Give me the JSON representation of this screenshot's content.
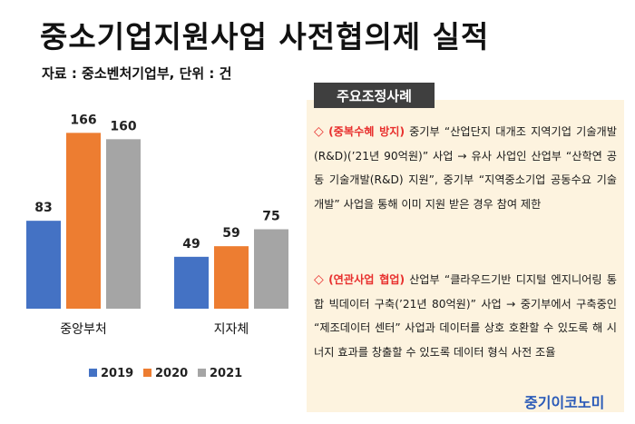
{
  "title": "중소기업지원사업  사전협의제  실적",
  "source_line": "자료 : 중소벤처기업부, 단위 : 건",
  "chart_data": {
    "type": "bar",
    "categories": [
      "중앙부처",
      "지자체"
    ],
    "series": [
      {
        "name": "2019",
        "values": [
          83,
          49
        ],
        "color": "#4472c4"
      },
      {
        "name": "2020",
        "values": [
          166,
          59
        ],
        "color": "#ed7d31"
      },
      {
        "name": "2021",
        "values": [
          160,
          75
        ],
        "color": "#a5a5a5"
      }
    ],
    "ylim": [
      0,
      180
    ],
    "grid": false,
    "legend_position": "bottom",
    "title": "",
    "xlabel": "",
    "ylabel": ""
  },
  "panel": {
    "header": "주요조정사례",
    "cases": [
      {
        "bullet": "◇",
        "tag": "(중복수혜 방지)",
        "text": "중기부 “산업단지 대개조 지역기업 기술개발(R&D)(’21년 90억원)” 사업 → 유사 사업인 산업부 “산학연 공동 기술개발(R&D) 지원”, 중기부 “지역중소기업 공동수요 기술개발” 사업을 통해 이미 지원 받은 경우 참여 제한"
      },
      {
        "bullet": "◇",
        "tag": "(연관사업 협업)",
        "text": "산업부 “클라우드기반 디지털 엔지니어링 통합 빅데이터 구축(’21년 80억원)” 사업 → 중기부에서 구축중인 “제조데이터 센터” 사업과 데이터를 상호 호환할 수 있도록 해 시너지 효과를 창출할 수 있도록 데이터 형식 사전 조율"
      }
    ],
    "logo": "중기이코노미"
  }
}
